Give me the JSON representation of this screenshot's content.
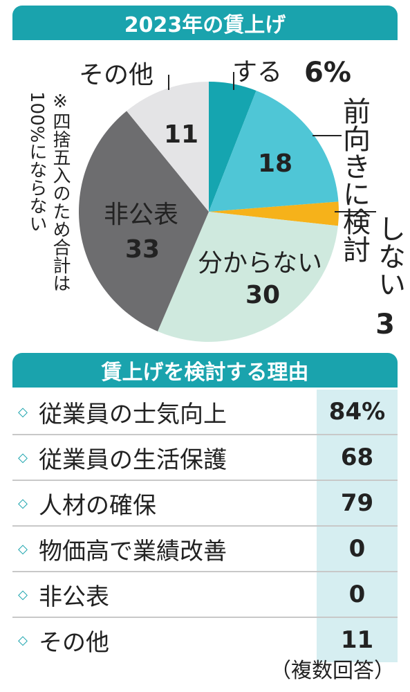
{
  "pie_section": {
    "title": "2023年の賃上げ",
    "note": "※四捨五入のため合計は100%にならない"
  },
  "reasons_section": {
    "title": "賃上げを検討する理由",
    "footer_note": "（複数回答）"
  },
  "chart_data": [
    {
      "type": "pie",
      "title": "2023年の賃上げ",
      "unit": "%",
      "slices": [
        {
          "label": "する",
          "value": 6,
          "value_text": "6%",
          "color": "#15a5b0"
        },
        {
          "label": "前向きに検討",
          "value": 18,
          "value_text": "18",
          "color": "#4fc6d6"
        },
        {
          "label": "しない",
          "value": 3,
          "value_text": "3",
          "color": "#f6b21a"
        },
        {
          "label": "分からない",
          "value": 30,
          "value_text": "30",
          "color": "#cfe9de"
        },
        {
          "label": "非公表",
          "value": 33,
          "value_text": "33",
          "color": "#6d6d6f"
        },
        {
          "label": "その他",
          "value": 11,
          "value_text": "11",
          "color": "#e4e4e6"
        }
      ],
      "start_angle_deg": 0,
      "direction": "clockwise",
      "note": "※四捨五入のため合計は100%にならない"
    },
    {
      "type": "table",
      "title": "賃上げを検討する理由",
      "rows": [
        {
          "label": "従業員の士気向上",
          "value": "84%"
        },
        {
          "label": "従業員の生活保護",
          "value": "68"
        },
        {
          "label": "人材の確保",
          "value": "79"
        },
        {
          "label": "物価高で業績改善",
          "value": "0"
        },
        {
          "label": "非公表",
          "value": "0"
        },
        {
          "label": "その他",
          "value": "11"
        }
      ],
      "note": "（複数回答）"
    }
  ],
  "colors": {
    "accent": "#1aa3ad",
    "value_cell": "#d6eef1",
    "divider": "#c8c8c8"
  },
  "icons": {
    "row_marker": "diamond-icon"
  }
}
